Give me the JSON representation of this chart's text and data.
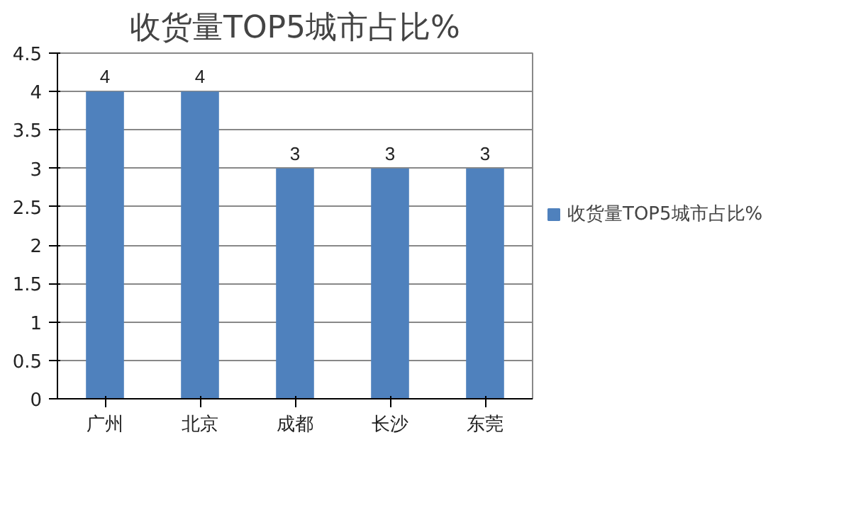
{
  "chart_data": {
    "type": "bar",
    "title": "收货量TOP5城市占比%",
    "categories": [
      "广州",
      "北京",
      "成都",
      "长沙",
      "东莞"
    ],
    "series": [
      {
        "name": "收货量TOP5城市占比%",
        "color": "#4f81bd",
        "values": [
          4,
          4,
          3,
          3,
          3
        ]
      }
    ],
    "ylim": [
      0,
      4.5
    ],
    "yticks": [
      0,
      0.5,
      1,
      1.5,
      2,
      2.5,
      3,
      3.5,
      4,
      4.5
    ],
    "grid": "y",
    "legend": "right",
    "data_labels": true
  }
}
